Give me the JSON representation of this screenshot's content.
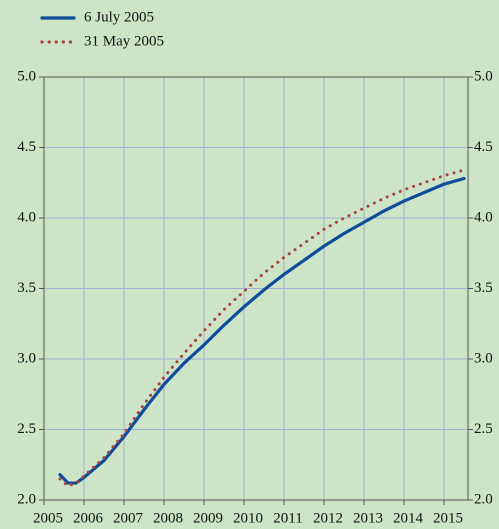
{
  "chart_data": {
    "type": "line",
    "x": [
      2005.4,
      2005.6,
      2005.8,
      2006,
      2006.5,
      2007,
      2007.5,
      2008,
      2008.5,
      2009,
      2009.5,
      2010,
      2010.5,
      2011,
      2011.5,
      2012,
      2012.5,
      2013,
      2013.5,
      2014,
      2014.5,
      2015,
      2015.5
    ],
    "series": [
      {
        "name": "6 July 2005",
        "color": "#0f4c9c",
        "style": "solid",
        "values": [
          2.18,
          2.12,
          2.12,
          2.16,
          2.28,
          2.45,
          2.64,
          2.82,
          2.97,
          3.1,
          3.24,
          3.37,
          3.49,
          3.6,
          3.7,
          3.8,
          3.89,
          3.97,
          4.05,
          4.12,
          4.18,
          4.24,
          4.28
        ]
      },
      {
        "name": "31 May 2005",
        "color": "#a8433d",
        "style": "dotted",
        "values": [
          2.15,
          2.1,
          2.12,
          2.17,
          2.3,
          2.47,
          2.68,
          2.87,
          3.04,
          3.2,
          3.35,
          3.48,
          3.61,
          3.72,
          3.82,
          3.92,
          4.0,
          4.07,
          4.14,
          4.2,
          4.25,
          4.3,
          4.34
        ]
      }
    ],
    "xlim": [
      2005,
      2015.6
    ],
    "xticks": [
      2005,
      2006,
      2007,
      2008,
      2009,
      2010,
      2011,
      2012,
      2013,
      2014,
      2015
    ],
    "ylim": [
      2,
      5
    ],
    "yticks": [
      {
        "value": 2,
        "label": "2.0"
      },
      {
        "value": 2.5,
        "label": "2.5"
      },
      {
        "value": 3,
        "label": "3.0"
      },
      {
        "value": 3.5,
        "label": "3.5"
      },
      {
        "value": 4,
        "label": "4.0"
      },
      {
        "value": 4.5,
        "label": "4.5"
      },
      {
        "value": 5,
        "label": "5.0"
      }
    ],
    "grid": true
  }
}
